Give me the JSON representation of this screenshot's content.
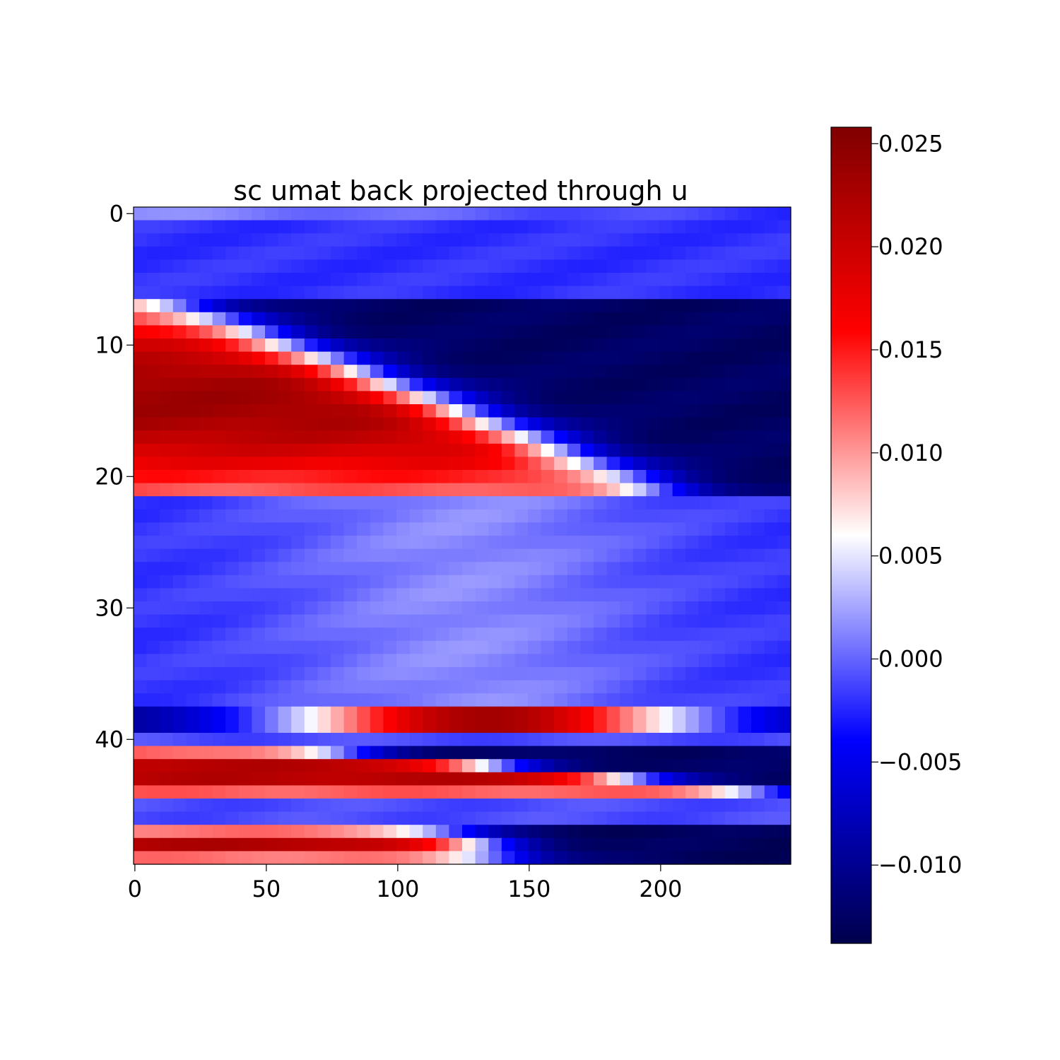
{
  "chart_data": {
    "type": "heatmap",
    "title": "sc umat back projected through u",
    "xlabel": "",
    "ylabel": "",
    "n_rows": 50,
    "n_cols": 250,
    "xlim": [
      -0.5,
      249.5
    ],
    "ylim": [
      49.5,
      -0.5
    ],
    "x_ticks": [
      0,
      50,
      100,
      150,
      200
    ],
    "x_tick_labels": [
      "0",
      "50",
      "100",
      "150",
      "200"
    ],
    "y_ticks": [
      0,
      10,
      20,
      30,
      40
    ],
    "y_tick_labels": [
      "0",
      "10",
      "20",
      "30",
      "40"
    ],
    "colorbar": {
      "colormap": "seismic",
      "vmin": -0.0138,
      "vmax": 0.0258,
      "ticks": [
        -0.01,
        -0.005,
        0.0,
        0.005,
        0.01,
        0.015,
        0.02,
        0.025
      ],
      "tick_labels": [
        "−0.010",
        "−0.005",
        "0.000",
        "0.005",
        "0.010",
        "0.015",
        "0.020",
        "0.025"
      ]
    },
    "band_model": {
      "description_units": "rows (y index) and columns (x index); values in colorbar units",
      "background_rows": [
        {
          "rows": [
            0,
            0
          ],
          "value": 0.0015,
          "right_value": -0.002
        },
        {
          "rows": [
            1,
            6
          ],
          "value": -0.002
        },
        {
          "rows": [
            7,
            21
          ],
          "type": "diagonal",
          "start_row": 7,
          "end_row": 21,
          "start_col": 20,
          "end_col": 200,
          "peak": 0.0235,
          "low": -0.0125
        },
        {
          "rows": [
            22,
            37
          ],
          "value": -0.002,
          "center_col": 125,
          "center_value": 0.0015
        },
        {
          "rows": [
            38,
            39
          ],
          "type": "ridge",
          "center_col": 135,
          "width": 80,
          "peak": 0.023,
          "low": -0.011
        },
        {
          "rows": [
            40,
            40
          ],
          "value": -0.001
        },
        {
          "rows": [
            41,
            44
          ],
          "type": "diagonal",
          "start_row": 41,
          "end_row": 44,
          "start_col": 80,
          "end_col": 240,
          "peak": 0.023,
          "low": -0.0125
        },
        {
          "rows": [
            45,
            46
          ],
          "value": -0.001
        },
        {
          "rows": [
            47,
            49
          ],
          "type": "diagonal",
          "start_row": 47,
          "end_row": 49,
          "start_col": 120,
          "end_col": 140,
          "peak": 0.022,
          "low": -0.013
        }
      ]
    }
  }
}
